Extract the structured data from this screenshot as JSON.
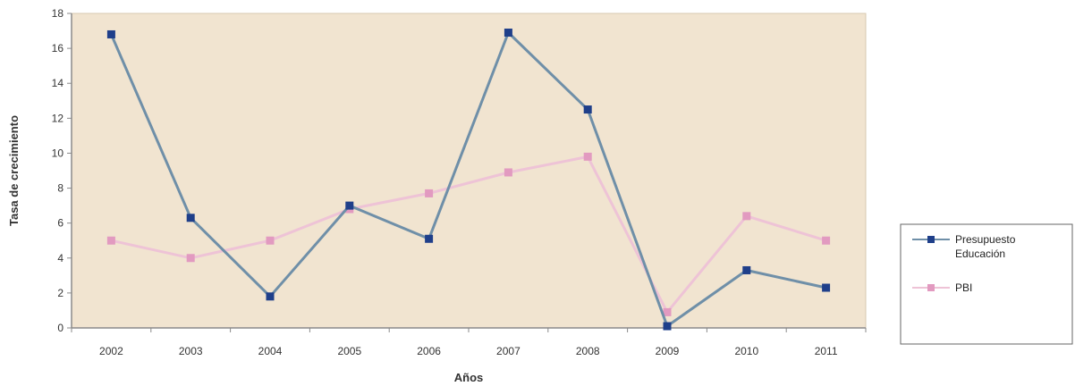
{
  "chart_data": {
    "type": "line",
    "title": "",
    "xlabel": "Años",
    "ylabel": "Tasa de crecimiento",
    "categories": [
      "2002",
      "2003",
      "2004",
      "2005",
      "2006",
      "2007",
      "2008",
      "2009",
      "2010",
      "2011"
    ],
    "ylim": [
      0,
      18
    ],
    "yticks": [
      0,
      2,
      4,
      6,
      8,
      10,
      12,
      14,
      16,
      18
    ],
    "grid": false,
    "legend_position": "right",
    "plot_background": "#f1e4d0",
    "series": [
      {
        "name": "Presupuesto Educación",
        "legend_lines": [
          "Presupuesto",
          "Educación"
        ],
        "values": [
          16.8,
          6.3,
          1.8,
          7.0,
          5.1,
          16.9,
          12.5,
          0.1,
          3.3,
          2.3
        ],
        "line_color": "#6f8fa8",
        "marker_color": "#1f3f8a",
        "marker": "square"
      },
      {
        "name": "PBI",
        "legend_lines": [
          "PBI"
        ],
        "values": [
          5.0,
          4.0,
          5.0,
          6.8,
          7.7,
          8.9,
          9.8,
          0.9,
          6.4,
          5.0
        ],
        "line_color": "#eec3d6",
        "marker_color": "#e29ac0",
        "marker": "square"
      }
    ]
  }
}
